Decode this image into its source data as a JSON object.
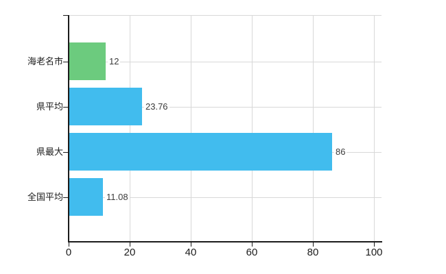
{
  "chart_data": {
    "type": "bar",
    "orientation": "horizontal",
    "categories": [
      "海老名市",
      "県平均",
      "県最大",
      "全国平均"
    ],
    "values": [
      12,
      23.76,
      86,
      11.08
    ],
    "value_labels": [
      "12",
      "23.76",
      "86",
      "11.08"
    ],
    "bar_colors": [
      "#6ccb7e",
      "#41bcee",
      "#41bcee",
      "#41bcee"
    ],
    "x_tick_labels": [
      "0",
      "20",
      "40",
      "60",
      "80",
      "100"
    ],
    "x_tick_values": [
      0,
      20,
      40,
      60,
      80,
      100
    ],
    "xlim": [
      0,
      100
    ],
    "grid": true,
    "legend": null,
    "title": ""
  },
  "colors": {
    "highlight_bar": "#6ccb7e",
    "default_bar": "#41bcee",
    "gridline": "#d8d8d8",
    "axis": "#1a1a1a",
    "category_text": "#1c1c1c",
    "value_text": "#3a3a3a",
    "background": "#ffffff"
  }
}
